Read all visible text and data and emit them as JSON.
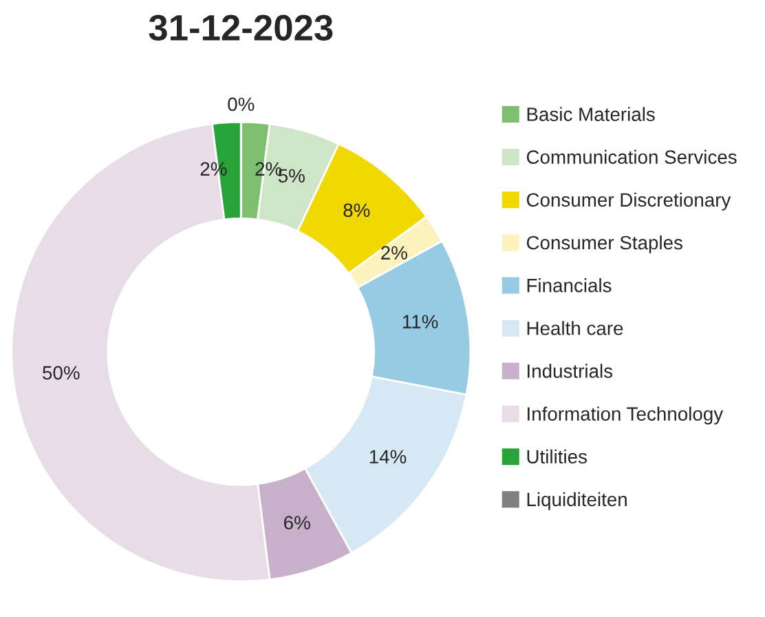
{
  "chart_data": {
    "type": "donut",
    "title": "31-12-2023",
    "categories": [
      "Basic Materials",
      "Communication Services",
      "Consumer Discretionary",
      "Consumer Staples",
      "Financials",
      "Health care",
      "Industrials",
      "Information Technology",
      "Utilities",
      "Liquiditeiten"
    ],
    "values": [
      2,
      5,
      8,
      2,
      11,
      14,
      6,
      50,
      2,
      0
    ],
    "value_labels": [
      "2%",
      "5%",
      "8%",
      "2%",
      "11%",
      "14%",
      "6%",
      "50%",
      "2%",
      "0%"
    ],
    "colors": [
      "#7dbf6f",
      "#cfe5c8",
      "#f1d800",
      "#fcf2bd",
      "#97cbe3",
      "#d6e8f3",
      "#c8afca",
      "#e8dce8",
      "#27a338",
      "#808080"
    ],
    "legend": "right"
  }
}
